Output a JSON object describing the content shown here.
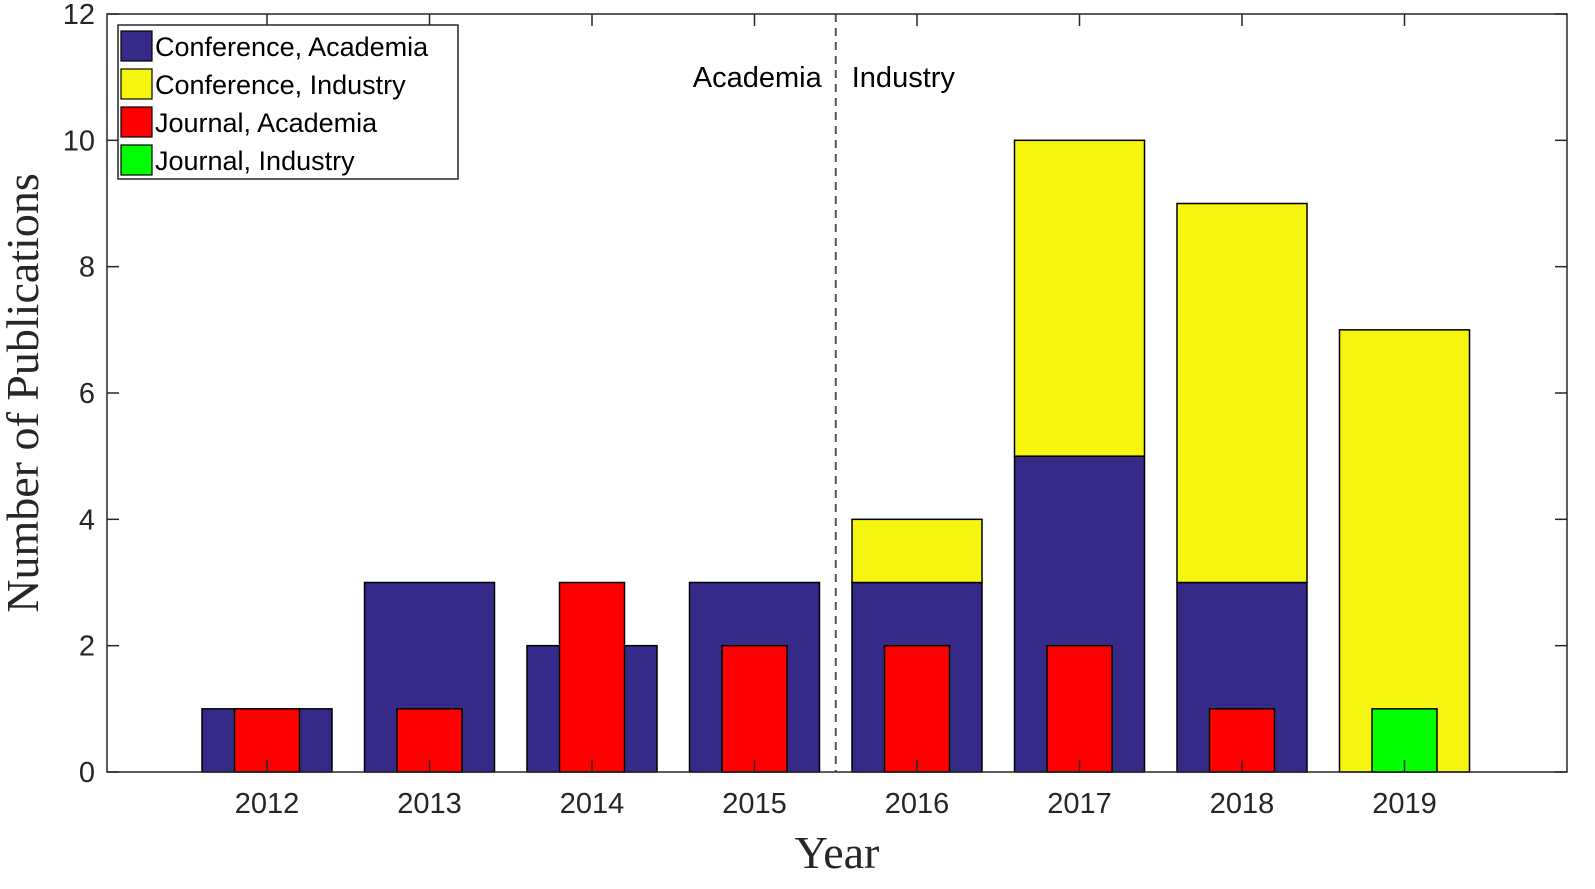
{
  "chart_data": {
    "type": "bar",
    "categories": [
      "2012",
      "2013",
      "2014",
      "2015",
      "2016",
      "2017",
      "2018",
      "2019"
    ],
    "series": [
      {
        "name": "Conference, Academia",
        "key": "conf_academia",
        "color": "#352a87",
        "values": [
          1,
          3,
          2,
          3,
          3,
          5,
          3,
          0
        ]
      },
      {
        "name": "Conference, Industry",
        "key": "conf_industry",
        "color": "#f5f510",
        "values": [
          0,
          0,
          0,
          0,
          1,
          5,
          6,
          7
        ]
      },
      {
        "name": "Journal, Academia",
        "key": "journal_academia",
        "color": "#ff0000",
        "values": [
          1,
          1,
          3,
          2,
          2,
          2,
          1,
          0
        ]
      },
      {
        "name": "Journal, Industry",
        "key": "journal_industry",
        "color": "#00ff00",
        "values": [
          0,
          0,
          0,
          0,
          0,
          0,
          0,
          1
        ]
      }
    ],
    "stacking": "Conference series stacked (wide bars); journal series drawn as narrower overlaid bars",
    "xlabel": "Year",
    "ylabel": "Number of Publications",
    "ylim": [
      0,
      12
    ],
    "yticks": [
      0,
      2,
      4,
      6,
      8,
      10,
      12
    ],
    "grid": false,
    "legend_position": "top-left",
    "divider_between": [
      "2015",
      "2016"
    ],
    "annotations": {
      "left": "Academia",
      "right": "Industry"
    }
  }
}
